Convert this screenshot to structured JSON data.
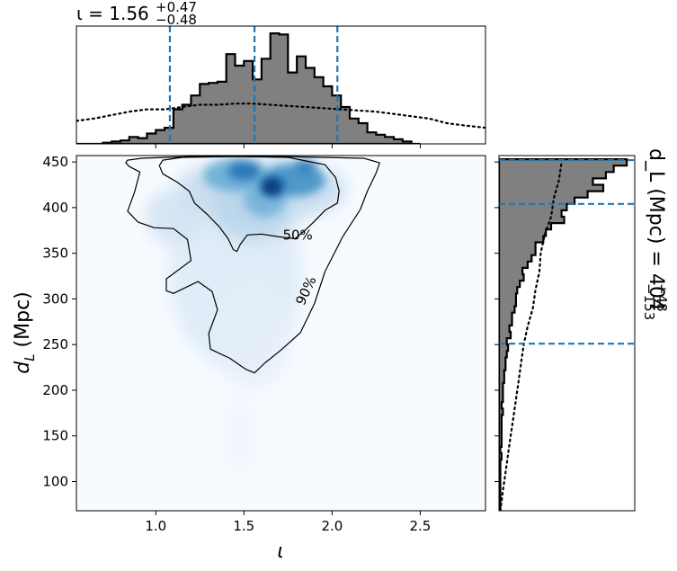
{
  "chart_data": [
    {
      "type": "heatmap",
      "title": "",
      "xlabel": "ι",
      "ylabel": "d_L (Mpc)",
      "xlim": [
        0.55,
        2.87
      ],
      "ylim": [
        68,
        457
      ],
      "xticks": [
        1.0,
        1.5,
        2.0,
        2.5
      ],
      "xtick_labels": [
        "1.0",
        "1.5",
        "2.0",
        "2.5"
      ],
      "yticks": [
        100,
        150,
        200,
        250,
        300,
        350,
        400,
        450
      ],
      "ytick_labels": [
        "100",
        "150",
        "200",
        "250",
        "300",
        "350",
        "400",
        "450"
      ],
      "colormap": "Blues",
      "density_peak": [
        1.65,
        423
      ],
      "contour_levels": [
        {
          "label": "50%",
          "points": [
            [
              1.02,
              446
            ],
            [
              1.04,
              437
            ],
            [
              1.12,
              428
            ],
            [
              1.19,
              418
            ],
            [
              1.22,
              405
            ],
            [
              1.29,
              393
            ],
            [
              1.36,
              379
            ],
            [
              1.41,
              366
            ],
            [
              1.44,
              354
            ],
            [
              1.46,
              352
            ],
            [
              1.48,
              360
            ],
            [
              1.52,
              370
            ],
            [
              1.6,
              371
            ],
            [
              1.7,
              368
            ],
            [
              1.79,
              366
            ],
            [
              1.84,
              374
            ],
            [
              1.9,
              385
            ],
            [
              1.96,
              397
            ],
            [
              2.03,
              405
            ],
            [
              2.04,
              418
            ],
            [
              2.02,
              433
            ],
            [
              1.96,
              447
            ],
            [
              1.75,
              455
            ],
            [
              1.45,
              456
            ],
            [
              1.15,
              455
            ],
            [
              1.04,
              452
            ]
          ]
        },
        {
          "label": "90%",
          "points": [
            [
              0.83,
              449
            ],
            [
              0.85,
              445
            ],
            [
              0.91,
              439
            ],
            [
              0.88,
              417
            ],
            [
              0.84,
              396
            ],
            [
              0.9,
              384
            ],
            [
              0.99,
              378
            ],
            [
              1.1,
              377
            ],
            [
              1.18,
              365
            ],
            [
              1.2,
              342
            ],
            [
              1.06,
              322
            ],
            [
              1.06,
              309
            ],
            [
              1.1,
              306
            ],
            [
              1.24,
              319
            ],
            [
              1.32,
              308
            ],
            [
              1.35,
              288
            ],
            [
              1.3,
              262
            ],
            [
              1.31,
              245
            ],
            [
              1.42,
              235
            ],
            [
              1.51,
              223
            ],
            [
              1.56,
              219
            ],
            [
              1.62,
              230
            ],
            [
              1.71,
              244
            ],
            [
              1.82,
              263
            ],
            [
              1.9,
              295
            ],
            [
              1.96,
              330
            ],
            [
              2.06,
              368
            ],
            [
              2.16,
              398
            ],
            [
              2.2,
              418
            ],
            [
              2.25,
              438
            ],
            [
              2.27,
              449
            ],
            [
              2.18,
              454
            ],
            [
              1.7,
              456
            ],
            [
              1.2,
              456
            ],
            [
              0.92,
              454
            ],
            [
              0.84,
              452
            ]
          ]
        }
      ],
      "colors": {
        "contour": "#000000",
        "colormap_high": "#08306b",
        "colormap_low": "#f7fbff"
      }
    },
    {
      "type": "bar",
      "title": "ι = 1.56^{+0.47}_{-0.48}",
      "title_main": "ι = 1.56",
      "title_upper": "+0.47",
      "title_lower": "−0.48",
      "xlabel": "",
      "ylabel": "",
      "xlim": [
        0.55,
        2.87
      ],
      "bin_edges": [
        0.55,
        0.6,
        0.65,
        0.7,
        0.75,
        0.8,
        0.85,
        0.9,
        0.95,
        1.0,
        1.05,
        1.1,
        1.15,
        1.2,
        1.25,
        1.3,
        1.35,
        1.4,
        1.45,
        1.5,
        1.55,
        1.6,
        1.65,
        1.7,
        1.75,
        1.8,
        1.85,
        1.9,
        1.95,
        2.0,
        2.05,
        2.1,
        2.15,
        2.2,
        2.25,
        2.3,
        2.35,
        2.4,
        2.45,
        2.5
      ],
      "values": [
        0,
        0,
        0,
        0.01,
        0.02,
        0.03,
        0.06,
        0.05,
        0.09,
        0.12,
        0.14,
        0.3,
        0.34,
        0.42,
        0.52,
        0.53,
        0.54,
        0.78,
        0.68,
        0.72,
        0.56,
        0.74,
        0.96,
        0.95,
        0.62,
        0.76,
        0.66,
        0.58,
        0.5,
        0.42,
        0.32,
        0.22,
        0.18,
        0.1,
        0.08,
        0.06,
        0.04,
        0.02,
        0
      ],
      "prior": {
        "x": [
          0.55,
          0.65,
          0.75,
          0.85,
          0.95,
          1.05,
          1.15,
          1.25,
          1.35,
          1.45,
          1.55,
          1.65,
          1.75,
          1.85,
          1.95,
          2.05,
          2.15,
          2.25,
          2.35,
          2.45,
          2.55,
          2.65,
          2.75,
          2.87
        ],
        "y": [
          0.2,
          0.22,
          0.25,
          0.28,
          0.3,
          0.3,
          0.32,
          0.34,
          0.34,
          0.35,
          0.35,
          0.34,
          0.33,
          0.32,
          0.31,
          0.3,
          0.29,
          0.28,
          0.26,
          0.24,
          0.22,
          0.18,
          0.16,
          0.14
        ]
      },
      "quantile_lines": [
        1.08,
        1.56,
        2.03
      ],
      "colors": {
        "fill": "#808080",
        "edge": "#000000",
        "quantile": "#1f77b4",
        "prior": "#000000"
      }
    },
    {
      "type": "bar",
      "title": "d_L (Mpc) = 404^{+48}_{-153}",
      "title_main": "d_L (Mpc) = 404",
      "title_upper": "+48",
      "title_lower": "−153",
      "orientation": "horizontal",
      "xlabel": "",
      "ylabel": "",
      "ylim": [
        68,
        457
      ],
      "bin_edges": [
        68,
        75,
        82,
        89,
        96,
        103,
        110,
        117,
        124,
        131,
        138,
        145,
        152,
        159,
        166,
        173,
        180,
        187,
        194,
        201,
        208,
        215,
        222,
        229,
        236,
        243,
        250,
        257,
        264,
        271,
        278,
        285,
        292,
        299,
        306,
        313,
        320,
        327,
        334,
        341,
        348,
        355,
        362,
        369,
        376,
        383,
        390,
        397,
        404,
        411,
        418,
        425,
        432,
        439,
        446,
        453
      ],
      "values": [
        0.01,
        0.01,
        0.01,
        0.01,
        0.01,
        0.01,
        0.01,
        0.01,
        0.02,
        0.01,
        0.02,
        0.02,
        0.02,
        0.02,
        0.02,
        0.03,
        0.02,
        0.03,
        0.03,
        0.03,
        0.04,
        0.04,
        0.05,
        0.05,
        0.06,
        0.07,
        0.06,
        0.09,
        0.08,
        0.1,
        0.1,
        0.12,
        0.13,
        0.13,
        0.14,
        0.16,
        0.19,
        0.18,
        0.22,
        0.25,
        0.28,
        0.28,
        0.34,
        0.36,
        0.4,
        0.5,
        0.48,
        0.52,
        0.58,
        0.68,
        0.8,
        0.72,
        0.82,
        0.88,
        0.98
      ],
      "prior": {
        "y": [
          68,
          90,
          110,
          130,
          150,
          170,
          190,
          210,
          230,
          250,
          270,
          290,
          310,
          330,
          350,
          370,
          390,
          410,
          430,
          450
        ],
        "x": [
          0.01,
          0.03,
          0.05,
          0.07,
          0.09,
          0.11,
          0.13,
          0.15,
          0.17,
          0.19,
          0.22,
          0.26,
          0.28,
          0.31,
          0.32,
          0.35,
          0.4,
          0.42,
          0.46,
          0.48
        ]
      },
      "quantile_lines": [
        251,
        404,
        452
      ],
      "colors": {
        "fill": "#808080",
        "edge": "#000000",
        "quantile": "#1f77b4",
        "prior": "#000000"
      }
    }
  ]
}
